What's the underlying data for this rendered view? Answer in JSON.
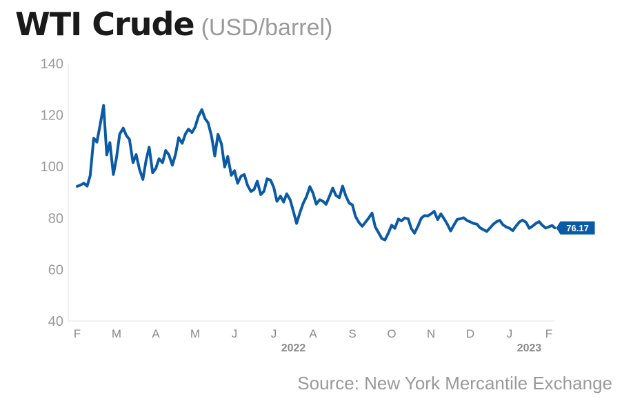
{
  "chart_data": {
    "type": "line",
    "title": "WTI Crude",
    "unit_label": "(USD/barrel)",
    "source": "Source: New York Mercantile Exchange",
    "ylim": [
      40,
      140
    ],
    "yticks": [
      40,
      60,
      80,
      100,
      120,
      140
    ],
    "month_labels": [
      "F",
      "M",
      "A",
      "M",
      "J",
      "J",
      "A",
      "S",
      "O",
      "N",
      "D",
      "J",
      "F"
    ],
    "year_labels": [
      {
        "label": "2022",
        "month_index": 5.5
      },
      {
        "label": "2023",
        "month_index": 11.5
      }
    ],
    "last_value_label": "76.17",
    "line_color": "#0b5aa5",
    "grid": false,
    "series": [
      {
        "x": [
          0.0,
          0.08,
          0.17,
          0.25,
          0.33,
          0.42,
          0.5,
          0.58,
          0.67,
          0.75,
          0.83,
          0.92,
          1.0,
          1.08,
          1.17,
          1.25,
          1.33,
          1.42,
          1.5,
          1.58,
          1.67,
          1.75,
          1.83,
          1.92,
          2.0,
          2.08,
          2.17,
          2.25,
          2.33,
          2.42,
          2.5,
          2.58,
          2.67,
          2.75,
          2.83,
          2.92,
          3.0,
          3.08,
          3.17,
          3.25,
          3.33,
          3.42,
          3.5,
          3.58,
          3.67,
          3.75,
          3.83,
          3.92,
          4.0,
          4.08,
          4.17,
          4.25,
          4.33,
          4.42,
          4.5,
          4.58,
          4.67,
          4.75,
          4.83,
          4.92,
          5.0,
          5.08,
          5.17,
          5.25,
          5.33,
          5.42,
          5.5,
          5.58,
          5.67,
          5.75,
          5.83,
          5.92,
          6.0,
          6.08,
          6.17,
          6.25,
          6.33,
          6.42,
          6.5,
          6.58,
          6.67,
          6.75,
          6.83,
          6.92,
          7.0,
          7.08,
          7.17,
          7.25,
          7.33,
          7.42,
          7.5,
          7.58,
          7.67,
          7.75,
          7.83,
          7.92,
          8.0,
          8.08,
          8.17,
          8.25,
          8.33,
          8.42,
          8.5,
          8.58,
          8.67,
          8.75,
          8.83,
          8.92,
          9.0,
          9.08,
          9.17,
          9.25,
          9.33,
          9.42,
          9.5,
          9.58,
          9.67,
          9.75,
          9.83,
          9.92,
          10.0,
          10.08,
          10.17,
          10.25,
          10.33,
          10.42,
          10.5,
          10.58,
          10.67,
          10.75,
          10.83,
          10.92,
          11.0,
          11.08,
          11.17,
          11.25,
          11.33,
          11.42,
          11.5,
          11.58,
          11.67,
          11.75,
          11.83,
          11.92,
          12.0,
          12.08,
          12.15
        ],
        "values": [
          92.3,
          92.8,
          93.5,
          92.4,
          96.5,
          111.0,
          109.5,
          116.0,
          123.7,
          104.5,
          109.3,
          96.9,
          103.5,
          112.6,
          114.9,
          112.0,
          110.5,
          101.5,
          104.6,
          99.1,
          95.0,
          102.3,
          107.5,
          97.6,
          99.3,
          103.0,
          101.5,
          106.2,
          104.6,
          100.5,
          104.7,
          111.2,
          109.0,
          112.6,
          114.5,
          113.2,
          115.3,
          119.4,
          122.1,
          118.6,
          117.0,
          111.6,
          104.1,
          112.5,
          108.7,
          99.8,
          103.9,
          96.6,
          98.4,
          93.5,
          96.3,
          96.9,
          92.8,
          90.3,
          91.1,
          94.3,
          89.1,
          90.4,
          95.2,
          94.7,
          91.9,
          86.5,
          88.5,
          86.2,
          89.4,
          87.0,
          82.5,
          77.9,
          82.3,
          85.8,
          88.2,
          92.2,
          89.6,
          85.4,
          87.1,
          86.5,
          85.3,
          88.5,
          91.6,
          88.8,
          87.9,
          92.4,
          88.7,
          85.8,
          85.1,
          80.6,
          78.2,
          76.8,
          78.3,
          80.1,
          81.9,
          76.6,
          74.2,
          72.0,
          71.5,
          74.3,
          77.2,
          76.0,
          79.6,
          78.9,
          80.0,
          79.7,
          75.9,
          74.1,
          76.9,
          79.9,
          80.9,
          80.8,
          81.6,
          82.6,
          79.4,
          81.6,
          79.8,
          77.5,
          75.0,
          77.2,
          79.5,
          79.7,
          80.1,
          79.0,
          78.5,
          77.9,
          77.6,
          76.2,
          75.5,
          74.8,
          76.1,
          77.5,
          78.6,
          79.1,
          77.4,
          76.5,
          76.0,
          75.1,
          77.0,
          78.5,
          79.2,
          78.3,
          76.0,
          76.8,
          77.9,
          78.6,
          77.2,
          76.1,
          76.6,
          77.1,
          76.17
        ]
      }
    ]
  }
}
